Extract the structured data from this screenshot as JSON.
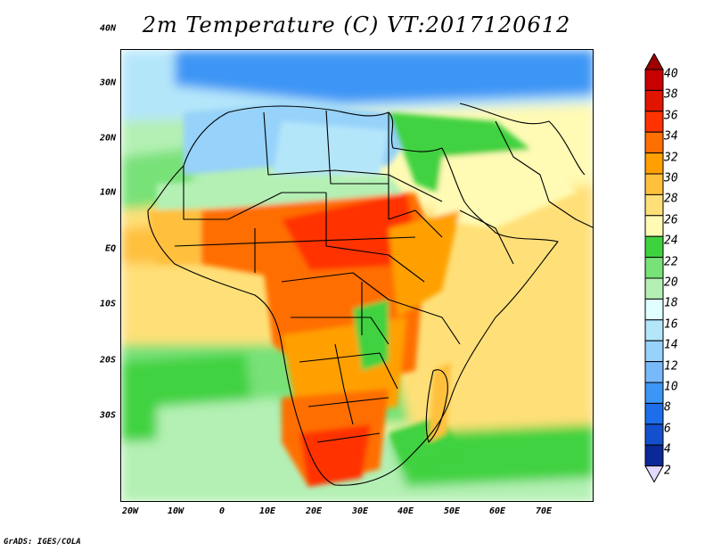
{
  "title": "2m Temperature (C) VT:2017120612",
  "credit": "GrADS: IGES/COLA",
  "lat_ticks": [
    "40N",
    "30N",
    "20N",
    "10N",
    "EQ",
    "10S",
    "20S",
    "30S"
  ],
  "lon_ticks": [
    "20W",
    "10W",
    "0",
    "10E",
    "20E",
    "30E",
    "40E",
    "50E",
    "60E",
    "70E"
  ],
  "colorbar": {
    "labels": [
      "40",
      "38",
      "36",
      "34",
      "32",
      "30",
      "28",
      "26",
      "24",
      "22",
      "20",
      "18",
      "16",
      "14",
      "12",
      "10",
      "8",
      "6",
      "4",
      "2"
    ],
    "colors": [
      "#a00000",
      "#c80000",
      "#e11400",
      "#ff3200",
      "#ff6e00",
      "#ffa000",
      "#ffc03c",
      "#ffe078",
      "#fffab4",
      "#3fd23f",
      "#78e178",
      "#b4f0b4",
      "#e1ffff",
      "#b4e6fa",
      "#96d2fa",
      "#78b9fa",
      "#3c96f5",
      "#1e6eeb",
      "#1450cd",
      "#0a2896",
      "#e1dcff"
    ]
  },
  "map": {
    "type": "filled-contour",
    "variable": "2m Temperature",
    "unit": "C",
    "region": "Africa"
  }
}
